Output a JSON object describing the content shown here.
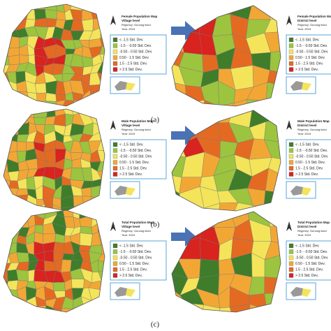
{
  "panels": [
    {
      "caption": "(a)",
      "village_legend": {
        "title": "Female Population Map",
        "level": "Village level",
        "regency": "Regency: Gunung kidul",
        "year": "Year: 2019"
      },
      "district_legend": {
        "title": "Female Population Map",
        "level": "District level",
        "regency": "Regency: Gunung kidul",
        "year": "Year: 2019"
      }
    },
    {
      "caption": "(b)",
      "village_legend": {
        "title": "Male Population Map",
        "level": "Village level",
        "regency": "Regency: Gunung kidul",
        "year": "Year: 2019"
      },
      "district_legend": {
        "title": "Male Population Map",
        "level": "District level",
        "regency": "Regency: Gunung kidul",
        "year": "Year: 2019"
      }
    },
    {
      "caption": "(c)",
      "village_legend": {
        "title": "Total Population Map",
        "level": "Village level",
        "regency": "Regency: Gunung kidul",
        "year": "Year: 2019"
      },
      "district_legend": {
        "title": "Total Population Map",
        "level": "District level",
        "regency": "Regency: Gunung kidul",
        "year": "Year: 2019"
      }
    }
  ],
  "legend": [
    {
      "label": "< -1.5 Std. Dev.",
      "color": "#3f7d2b"
    },
    {
      "label": "-1.5 - -0.50 Std. Dev.",
      "color": "#9cc43e"
    },
    {
      "label": "-0.50 - 0.50 Std. Dev.",
      "color": "#f3e45a"
    },
    {
      "label": "0.50 - 1.5 Std. Dev.",
      "color": "#f2a735"
    },
    {
      "label": "1.5 - 2.5 Std. Dev.",
      "color": "#e46a22"
    },
    {
      "label": "> 2.5 Std. Dev.",
      "color": "#d8231f"
    }
  ]
}
